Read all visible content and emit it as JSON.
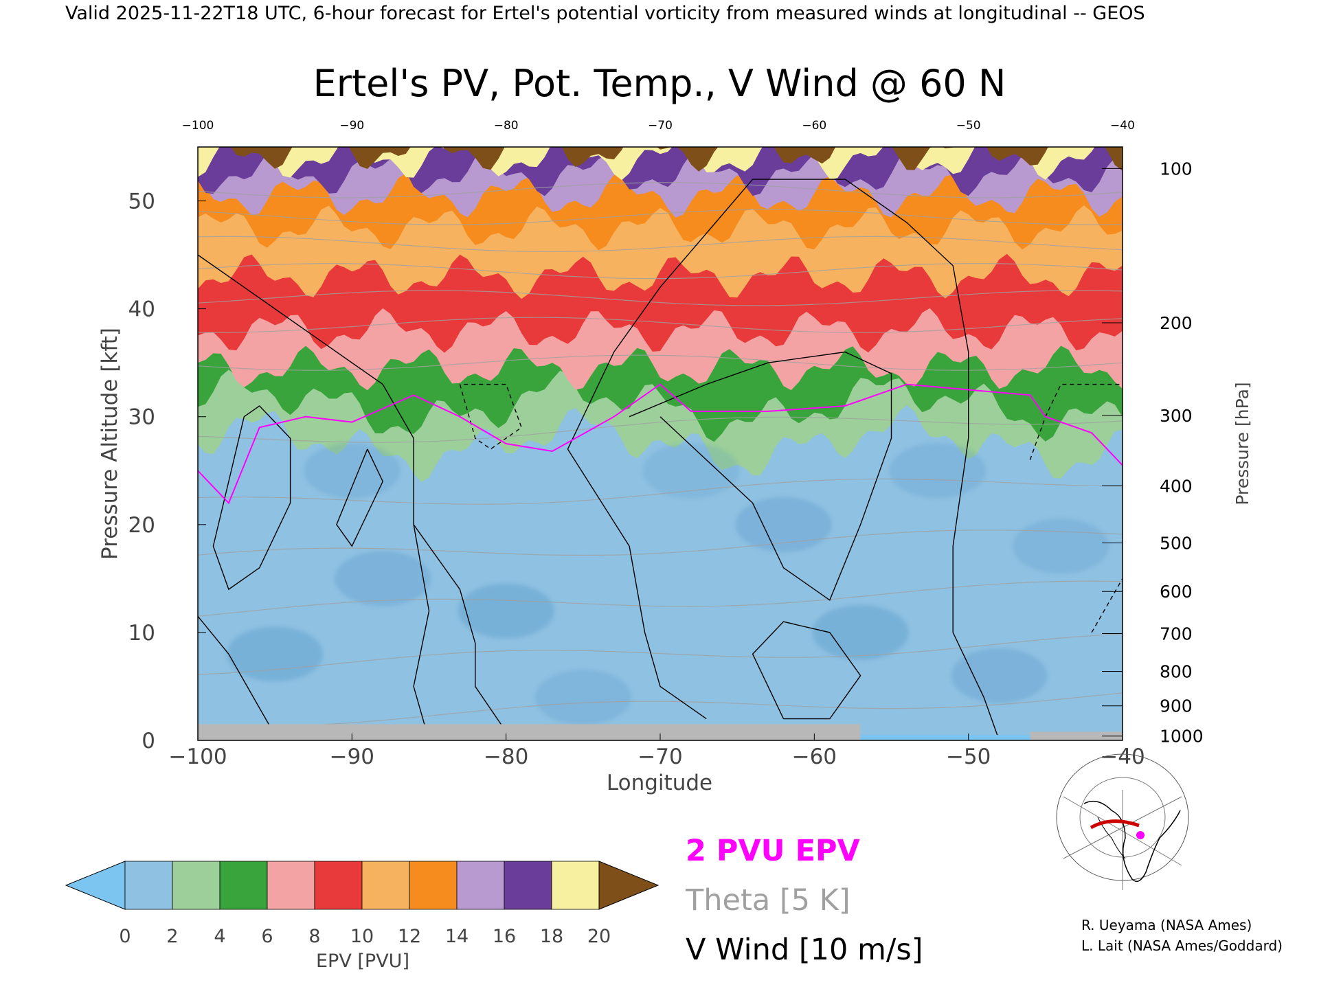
{
  "header": "Valid 2025-11-22T18 UTC, 6-hour forecast for Ertel's potential vorticity from measured winds at longitudinal -- GEOS",
  "chart_data": {
    "type": "heatmap",
    "title": "Ertel's PV, Pot. Temp., V Wind @ 60 N",
    "xlabel": "Longitude",
    "ylabel_left": "Pressure Altitude [kft]",
    "ylabel_right": "Pressure [hPa]",
    "xlim": [
      -100,
      -40
    ],
    "ylim": [
      0,
      55
    ],
    "x_ticks": [
      "−100",
      "−90",
      "−80",
      "−70",
      "−60",
      "−50",
      "−40"
    ],
    "x_tick_values": [
      -100,
      -90,
      -80,
      -70,
      -60,
      -50,
      -40
    ],
    "top_ticks": [
      "−100",
      "−90",
      "−80",
      "−70",
      "−60",
      "−50",
      "−40"
    ],
    "y_ticks": [
      "0",
      "10",
      "20",
      "30",
      "40",
      "50"
    ],
    "y_tick_values": [
      0,
      10,
      20,
      30,
      40,
      50
    ],
    "pressure_ticks": [
      {
        "label": "100",
        "kft": 53.0
      },
      {
        "label": "200",
        "kft": 38.7
      },
      {
        "label": "300",
        "kft": 30.1
      },
      {
        "label": "400",
        "kft": 23.6
      },
      {
        "label": "500",
        "kft": 18.3
      },
      {
        "label": "600",
        "kft": 13.8
      },
      {
        "label": "700",
        "kft": 9.9
      },
      {
        "label": "800",
        "kft": 6.4
      },
      {
        "label": "900",
        "kft": 3.2
      },
      {
        "label": "1000",
        "kft": 0.4
      }
    ],
    "field_epv_layers": [
      {
        "pvu": 2,
        "base_kft": 27.5,
        "color": "#9ccf9a"
      },
      {
        "pvu": 4,
        "base_kft": 31.0,
        "color": "#3aa43c"
      },
      {
        "pvu": 6,
        "base_kft": 34.5,
        "color": "#f3a3a3"
      },
      {
        "pvu": 8,
        "base_kft": 38.0,
        "color": "#e83a3a"
      },
      {
        "pvu": 10,
        "base_kft": 43.0,
        "color": "#f7b25f"
      },
      {
        "pvu": 12,
        "base_kft": 47.5,
        "color": "#f68c1e"
      },
      {
        "pvu": 14,
        "base_kft": 50.5,
        "color": "#b89ad0"
      },
      {
        "pvu": 16,
        "base_kft": 52.5,
        "color": "#6a3d9a"
      },
      {
        "pvu": 18,
        "base_kft": 54.0,
        "color": "#f7f0a0"
      },
      {
        "pvu": 20,
        "base_kft": 54.8,
        "color": "#7f4f1a"
      }
    ],
    "two_pvu_line_kft": [
      {
        "lon": -100,
        "kft": 25.0
      },
      {
        "lon": -98,
        "kft": 22.0
      },
      {
        "lon": -96,
        "kft": 29.0
      },
      {
        "lon": -93,
        "kft": 30.0
      },
      {
        "lon": -90,
        "kft": 29.5
      },
      {
        "lon": -86,
        "kft": 32.0
      },
      {
        "lon": -83,
        "kft": 30.0
      },
      {
        "lon": -80,
        "kft": 27.5
      },
      {
        "lon": -77,
        "kft": 26.8
      },
      {
        "lon": -73,
        "kft": 30.0
      },
      {
        "lon": -70,
        "kft": 33.0
      },
      {
        "lon": -68,
        "kft": 30.5
      },
      {
        "lon": -63,
        "kft": 30.5
      },
      {
        "lon": -58,
        "kft": 31.0
      },
      {
        "lon": -54,
        "kft": 33.0
      },
      {
        "lon": -50,
        "kft": 32.5
      },
      {
        "lon": -46,
        "kft": 32.0
      },
      {
        "lon": -45,
        "kft": 30.0
      },
      {
        "lon": -42,
        "kft": 28.5
      },
      {
        "lon": -40,
        "kft": 25.5
      }
    ],
    "colorbar": {
      "label": "EPV [PVU]",
      "ticks": [
        "0",
        "2",
        "4",
        "6",
        "8",
        "10",
        "12",
        "14",
        "16",
        "18",
        "20"
      ],
      "colors": [
        "#8fc1e2",
        "#9ccf9a",
        "#3aa43c",
        "#f3a3a3",
        "#e83a3a",
        "#f7b25f",
        "#f68c1e",
        "#b89ad0",
        "#6a3d9a",
        "#f7f0a0"
      ],
      "under_color": "#7cc5f0",
      "over_color": "#7f4f1a"
    },
    "legend": {
      "epv": "2 PVU EPV",
      "theta": "Theta [5 K]",
      "vwind": "V Wind [10 m/s]"
    },
    "colors": {
      "two_pvu": "#ff00ff",
      "theta": "#a0a0a0",
      "vwind": "#000000",
      "terrain": "#b8b8b8"
    }
  },
  "map_inset": {
    "icon": "globe-map-icon",
    "section_color": "#cc0000",
    "point_color": "#ff00ff"
  },
  "credits": [
    "R. Ueyama (NASA Ames)",
    "L. Lait (NASA Ames/Goddard)"
  ]
}
